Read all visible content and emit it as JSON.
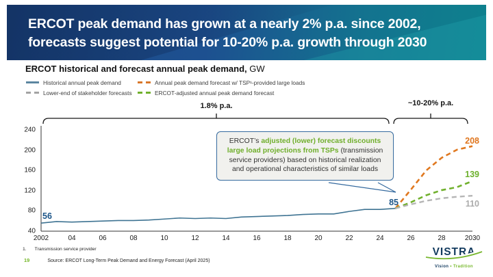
{
  "slide": {
    "title_line1": "ERCOT peak demand has grown at a nearly 2% p.a. since 2002,",
    "title_line2": "forecasts suggest potential for 10-20% p.a. growth through 2030",
    "footnote_number": "1.",
    "footnote_text": "Transmission service provider",
    "page_number": "19",
    "source": "Source: ERCOT Long-Term Peak Demand and Energy Forecast (April 2025)"
  },
  "chart_header": {
    "title_bold": "ERCOT historical and forecast annual peak demand,",
    "title_unit": " GW"
  },
  "legend": [
    {
      "label": "Historical annual peak demand",
      "color": "#5c86a0",
      "style": "solid"
    },
    {
      "label": "Annual peak demand forecast w/ TSP¹-provided large loads",
      "color": "#d9772a",
      "style": "dashed"
    },
    {
      "label": "Lower-end of stakeholder forecasts",
      "color": "#a3a3a3",
      "style": "dashed"
    },
    {
      "label": "ERCOT-adjusted annual peak demand forecast",
      "color": "#70b02c",
      "style": "dashed"
    }
  ],
  "callout": {
    "prefix": "ERCOT’s ",
    "highlight": "adjusted (lower) forecast discounts large load projections from TSPs",
    "rest": " (transmission service providers) based on historical realization and operational characteristics of similar loads"
  },
  "annotations": {
    "historical_cagr": "1.8% p.a.",
    "forecast_cagr": "~10-20% p.a."
  },
  "chart_data": {
    "type": "line",
    "title": "ERCOT historical and forecast annual peak demand",
    "ylabel": "GW",
    "ylim": [
      40,
      240
    ],
    "xlim": [
      2002,
      2030
    ],
    "grid": false,
    "y_tick_labels": [
      "240",
      "200",
      "160",
      "120",
      "80",
      "40"
    ],
    "y_tick_values": [
      240,
      200,
      160,
      120,
      80,
      40
    ],
    "x_tick_labels": [
      "2002",
      "04",
      "06",
      "08",
      "10",
      "12",
      "14",
      "16",
      "18",
      "20",
      "22",
      "24",
      "26",
      "28",
      "2030"
    ],
    "x_tick_values": [
      2002,
      2004,
      2006,
      2008,
      2010,
      2012,
      2014,
      2016,
      2018,
      2020,
      2022,
      2024,
      2026,
      2028,
      2030
    ],
    "series": [
      {
        "name": "Historical annual peak demand",
        "color": "#3e7392",
        "dashed": false,
        "x": [
          2002,
          2003,
          2004,
          2005,
          2006,
          2007,
          2008,
          2009,
          2010,
          2011,
          2012,
          2013,
          2014,
          2015,
          2016,
          2017,
          2018,
          2019,
          2020,
          2021,
          2022,
          2023,
          2024,
          2025
        ],
        "values": [
          56,
          59,
          58,
          59,
          60,
          61,
          61,
          62,
          64,
          66,
          65,
          66,
          65,
          68,
          69,
          70,
          71,
          73,
          74,
          74,
          79,
          83,
          83,
          85
        ]
      },
      {
        "name": "Annual peak demand forecast w/ TSP-provided large loads",
        "color": "#e0781f",
        "dashed": true,
        "x": [
          2025,
          2026,
          2027,
          2028,
          2029,
          2030
        ],
        "values": [
          85,
          122,
          160,
          185,
          201,
          208
        ]
      },
      {
        "name": "ERCOT-adjusted annual peak demand forecast",
        "color": "#70b02c",
        "dashed": true,
        "x": [
          2025,
          2026,
          2027,
          2028,
          2029,
          2030
        ],
        "values": [
          85,
          97,
          111,
          121,
          127,
          139
        ]
      },
      {
        "name": "Lower-end of stakeholder forecasts",
        "color": "#b5b5b5",
        "dashed": true,
        "x": [
          2025,
          2026,
          2027,
          2028,
          2029,
          2030
        ],
        "values": [
          85,
          93,
          100,
          105,
          108,
          110
        ]
      }
    ],
    "point_labels": {
      "historical_start": "56",
      "historical_end": "85",
      "tsp_forecast_end": "208",
      "adjusted_forecast_end": "139",
      "lower_forecast_end": "110"
    }
  },
  "logo": {
    "name": "VISTRA",
    "tagline_left": "Vision",
    "tagline_sep": "•",
    "tagline_right": "Tradition"
  }
}
